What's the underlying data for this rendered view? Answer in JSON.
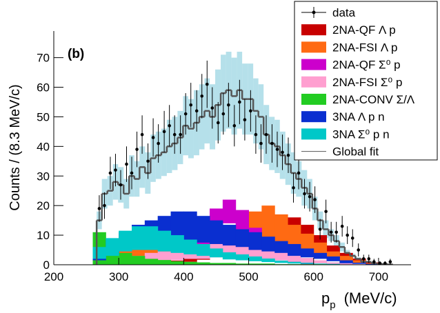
{
  "chart_data": {
    "type": "histogram",
    "panel_label": "(b)",
    "y_label": "Counts / (8.3 MeV/c)",
    "x_label": "p",
    "x_label_sub": "p",
    "x_label_unit": "(MeV/c)",
    "xlim": [
      200,
      750
    ],
    "ylim": [
      0,
      79
    ],
    "xticks": [
      200,
      300,
      400,
      500,
      600,
      700
    ],
    "yticks": [
      0,
      10,
      20,
      30,
      40,
      50,
      60,
      70
    ],
    "x": [
      270,
      278,
      287,
      295,
      303,
      312,
      320,
      328,
      336,
      345,
      353,
      361,
      370,
      378,
      386,
      395,
      403,
      411,
      420,
      428,
      436,
      444,
      453,
      461,
      469,
      478,
      486,
      494,
      503,
      511,
      519,
      527,
      536,
      544,
      552,
      561,
      569,
      577,
      586,
      594,
      602,
      610,
      619,
      627,
      635,
      644,
      652,
      660,
      669,
      677,
      685,
      693,
      702,
      710,
      718
    ],
    "data": {
      "name": "data",
      "color": "#000000",
      "values": [
        19,
        20,
        31,
        32,
        27,
        34,
        31,
        39,
        44,
        35,
        43,
        41,
        45,
        47,
        44,
        44,
        51,
        54,
        52,
        57,
        61,
        53,
        48,
        51,
        54,
        47,
        55,
        49,
        52,
        44,
        41,
        44,
        41,
        39,
        38,
        37,
        26,
        31,
        24,
        23,
        22,
        12,
        18,
        11,
        11,
        13,
        10,
        9,
        5,
        2,
        2,
        1,
        0.5,
        0.5,
        1
      ],
      "errors": [
        4.5,
        4.5,
        5.5,
        5.5,
        5,
        6,
        5.5,
        6,
        6.5,
        6,
        6.5,
        6.5,
        7,
        7,
        6.5,
        6.5,
        7,
        7.5,
        7,
        7.5,
        8,
        7,
        7,
        7,
        7.5,
        7,
        7.5,
        7,
        7,
        6.5,
        6.5,
        6.5,
        6.5,
        6,
        6,
        6,
        5,
        5.5,
        5,
        5,
        4.5,
        3.5,
        4,
        3.5,
        3.5,
        3.5,
        3,
        3,
        2.2,
        1.4,
        1.4,
        1,
        0.7,
        0.7,
        1
      ]
    },
    "fit": {
      "name": "Global fit",
      "color": "#555555",
      "band_color": "#a8dbe6",
      "values": [
        15,
        24,
        25,
        28,
        27,
        24,
        30,
        29,
        33,
        31,
        36,
        37,
        38,
        40,
        41,
        43,
        47,
        46,
        48,
        50,
        52,
        50,
        54,
        58,
        59,
        57,
        59,
        56,
        56,
        52,
        50,
        44,
        41,
        40,
        37,
        34,
        31,
        29,
        26,
        24,
        19,
        15,
        12,
        10,
        8,
        6,
        4,
        3,
        2,
        1,
        1,
        0.5,
        0.3,
        0.2,
        0.1
      ],
      "errors": [
        3,
        5,
        5,
        6,
        6,
        5,
        7,
        6,
        7,
        7,
        8,
        8,
        8,
        9,
        9,
        9,
        10,
        10,
        11,
        11,
        11,
        11,
        12,
        13,
        13,
        13,
        13,
        12,
        12,
        11,
        11,
        10,
        9,
        9,
        8,
        7,
        7,
        6,
        6,
        5,
        4,
        3,
        3,
        2,
        2,
        1.5,
        1,
        0.7,
        0.5,
        0.3,
        0.3,
        0.1,
        0.1,
        0,
        0
      ]
    },
    "components": {
      "x": [
        270,
        290,
        310,
        330,
        350,
        370,
        390,
        410,
        430,
        450,
        470,
        490,
        510,
        530,
        550,
        570,
        590,
        610,
        630,
        650,
        670,
        690
      ],
      "series": [
        {
          "name": "2NA-QF Λ p",
          "color": "#c80000",
          "values": [
            0.2,
            0.3,
            0.4,
            0.5,
            0.6,
            0.8,
            1,
            1.5,
            2.5,
            4,
            6,
            8,
            11,
            13,
            14,
            13,
            11,
            8,
            5,
            3,
            1.5,
            0.5
          ],
          "errors": [
            0.1,
            0.1,
            0.2,
            0.2,
            0.2,
            0.3,
            0.4,
            0.5,
            0.8,
            1.2,
            1.6,
            2,
            2.5,
            3,
            3,
            3,
            2.5,
            2,
            1.5,
            1,
            0.6,
            0.3
          ]
        },
        {
          "name": "2NA-FSI Λ p",
          "color": "#ff6a13",
          "values": [
            2,
            4,
            5,
            5,
            6,
            6,
            6,
            6,
            6,
            6,
            7,
            9,
            12,
            13,
            11,
            9,
            7,
            5,
            3,
            2,
            1,
            0.3
          ],
          "errors": [
            1.5,
            2.5,
            3,
            3,
            3,
            3,
            3,
            3,
            3,
            3,
            3.5,
            4.5,
            6,
            7,
            6,
            4.5,
            3.5,
            2.5,
            1.5,
            1,
            0.5,
            0.2
          ]
        },
        {
          "name": "2NA-QF Σ⁰ p",
          "color": "#cc00cc",
          "values": [
            0.2,
            0.3,
            0.5,
            0.8,
            1,
            2,
            3,
            6,
            10,
            15,
            18,
            15,
            10,
            6,
            3,
            1,
            0.3,
            0.1,
            0.1,
            0.1,
            0.1,
            0.1
          ],
          "errors": [
            0.1,
            0.1,
            0.2,
            0.3,
            0.4,
            0.8,
            1,
            2,
            3,
            4,
            4,
            3.5,
            2.5,
            1.5,
            1,
            0.4,
            0.1,
            0,
            0,
            0,
            0,
            0
          ]
        },
        {
          "name": "2NA-FSI Σ⁰ p",
          "color": "#ff9fd0",
          "values": [
            0.5,
            1,
            1.5,
            2,
            2.5,
            3,
            3.5,
            4,
            4.5,
            5,
            5,
            5,
            4.5,
            4,
            3,
            2,
            1.5,
            1,
            0.5,
            0.3,
            0.1,
            0
          ],
          "errors": [
            0.3,
            0.5,
            1,
            1,
            1.5,
            1.5,
            2,
            2,
            2.5,
            2.5,
            2.5,
            2.5,
            2,
            2,
            1.5,
            1,
            0.8,
            0.5,
            0.3,
            0.2,
            0.1,
            0
          ]
        },
        {
          "name": "2NA-CONV Σ/Λ",
          "color": "#22cc22",
          "values": [
            5,
            3,
            2,
            1.5,
            1,
            0.8,
            0.6,
            0.5,
            0.4,
            0.3,
            0.3,
            0.2,
            0.2,
            0.2,
            0.1,
            0.1,
            0.1,
            0.1,
            0,
            0,
            0,
            0
          ],
          "errors": [
            6,
            3,
            2,
            1.5,
            1,
            0.8,
            0.6,
            0.5,
            0.4,
            0.3,
            0.3,
            0.2,
            0.2,
            0.2,
            0.1,
            0.1,
            0.1,
            0.1,
            0,
            0,
            0,
            0
          ]
        },
        {
          "name": "3NA Λ p n",
          "color": "#0a2fd0",
          "values": [
            3,
            6,
            8,
            10,
            11,
            12,
            13,
            13,
            12,
            11,
            10,
            9,
            8,
            7,
            6,
            5,
            4,
            3,
            2,
            1,
            0.5,
            0.2
          ],
          "errors": [
            1.5,
            2.5,
            3,
            3.5,
            4,
            4.5,
            5,
            5,
            4.5,
            4,
            3.5,
            3,
            3,
            2.5,
            2,
            2,
            1.5,
            1,
            0.8,
            0.5,
            0.2,
            0.1
          ]
        },
        {
          "name": "3NA Σ⁰ p n",
          "color": "#00c8c8",
          "values": [
            4,
            6,
            8,
            9,
            9,
            8,
            7,
            6,
            5,
            4,
            3,
            2.5,
            2,
            1.5,
            1,
            0.7,
            0.5,
            0.3,
            0.2,
            0.1,
            0,
            0
          ],
          "errors": [
            2,
            3,
            3.5,
            4,
            4,
            3.5,
            3,
            2.5,
            2,
            1.5,
            1.2,
            1,
            0.8,
            0.6,
            0.4,
            0.3,
            0.2,
            0.1,
            0.1,
            0,
            0,
            0
          ]
        }
      ]
    }
  }
}
